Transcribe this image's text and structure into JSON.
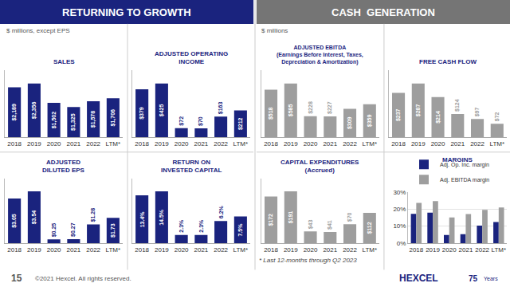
{
  "chart_data": [
    {
      "type": "bar",
      "title": "SALES",
      "categories": [
        "2018",
        "2019",
        "2020",
        "2021",
        "2022",
        "LTM*"
      ],
      "values": [
        2189,
        2356,
        1502,
        1325,
        1578,
        1706
      ],
      "value_labels": [
        "$2,189",
        "$2,356",
        "$1,502",
        "$1,325",
        "$1,578",
        "$1,706"
      ],
      "color": "#1a237e",
      "data_labels": true,
      "ylim": [
        0,
        2945
      ],
      "yticks": [],
      "tick_labels": "x",
      "grid": false
    },
    {
      "type": "bar",
      "title": "ADJUSTED OPERATING\nINCOME",
      "categories": [
        "2018",
        "2019",
        "2020",
        "2021",
        "2022",
        "LTM*"
      ],
      "values": [
        379,
        425,
        72,
        70,
        163,
        212
      ],
      "value_labels": [
        "$379",
        "$425",
        "$72",
        "$70",
        "$163",
        "$212"
      ],
      "color": "#1a237e",
      "data_labels": true,
      "ylim": [
        0,
        531.25
      ],
      "yticks": [],
      "tick_labels": "x",
      "grid": false
    },
    {
      "type": "bar",
      "title": "ADJUSTED\nDILUTED EPS",
      "categories": [
        "2018",
        "2019",
        "2020",
        "2021",
        "2022",
        "LTM*"
      ],
      "values": [
        3.05,
        3.54,
        0.25,
        0.27,
        1.28,
        1.73
      ],
      "value_labels": [
        "$3.05",
        "$3.54",
        "$0.25",
        "$0.27",
        "$1.28",
        "$1.73"
      ],
      "color": "#1a237e",
      "data_labels": true,
      "ylim": [
        0,
        4.425
      ],
      "yticks": [],
      "tick_labels": "x",
      "grid": false
    },
    {
      "type": "bar",
      "title": "RETURN ON\nINVESTED CAPITAL",
      "categories": [
        "2018",
        "2019",
        "2020",
        "2021",
        "2022",
        "LTM*"
      ],
      "values": [
        13.4,
        14.5,
        2.3,
        2.3,
        6.2,
        7.5
      ],
      "value_labels": [
        "13.4%",
        "14.5%",
        "2.3%",
        "2.3%",
        "6.2%",
        "7.5%"
      ],
      "color": "#1a237e",
      "data_labels": true,
      "ylim": [
        0,
        18.125
      ],
      "yticks": [],
      "tick_labels": "x",
      "grid": false
    },
    {
      "type": "bar",
      "title": "ADJUSTED EBITDA\n(Earnings Before Interest, Taxes,\nDepreciation & Amortization)",
      "categories": [
        "2018",
        "2019",
        "2020",
        "2021",
        "2022",
        "LTM*"
      ],
      "values": [
        518,
        585,
        228,
        227,
        309,
        359
      ],
      "value_labels": [
        "$518",
        "$585",
        "$228",
        "$227",
        "$309",
        "$359"
      ],
      "color": "#9e9e9e",
      "data_labels": true,
      "ylim": [
        0,
        731.25
      ],
      "yticks": [],
      "tick_labels": "x",
      "grid": false
    },
    {
      "type": "bar",
      "title": "FREE CASH FLOW",
      "categories": [
        "2018",
        "2019",
        "2020",
        "2021",
        "2022",
        "LTM*"
      ],
      "values": [
        237,
        287,
        214,
        124,
        97,
        72
      ],
      "value_labels": [
        "$237",
        "$287",
        "$214",
        "$124",
        "$97",
        "$72"
      ],
      "color": "#9e9e9e",
      "data_labels": true,
      "ylim": [
        0,
        358.75
      ],
      "yticks": [],
      "tick_labels": "x",
      "grid": false
    },
    {
      "type": "bar",
      "title": "CAPITAL EXPENDITURES\n(Accrued)",
      "categories": [
        "2018",
        "2019",
        "2020",
        "2021",
        "2022",
        "LTM*"
      ],
      "values": [
        172,
        191,
        43,
        41,
        70,
        112
      ],
      "value_labels": [
        "$172",
        "$191",
        "$43",
        "$41",
        "$70",
        "$112"
      ],
      "color": "#9e9e9e",
      "data_labels": true,
      "ylim": [
        0,
        238.75
      ],
      "yticks": [],
      "tick_labels": "x",
      "grid": false
    },
    {
      "type": "bar",
      "title": "MARGINS",
      "categories": [
        "2018",
        "2019",
        "2020",
        "2021",
        "2022",
        "LTM*"
      ],
      "series": [
        {
          "name": "Adj. Op. Inc. margin",
          "color": "#1a237e",
          "values": [
            17.3,
            18.0,
            4.8,
            5.3,
            10.3,
            12.4
          ]
        },
        {
          "name": "Adj. EBITDA margin",
          "color": "#9e9e9e",
          "values": [
            23.7,
            24.8,
            15.2,
            17.1,
            19.6,
            21.0
          ]
        }
      ],
      "ylim": [
        0,
        30
      ],
      "yticks": [
        {
          "value": 0,
          "label": "0%"
        },
        {
          "value": 10,
          "label": "10%"
        },
        {
          "value": 20,
          "label": "20%"
        },
        {
          "value": 30,
          "label": "30%"
        }
      ],
      "grid": true,
      "legend": "upper left"
    }
  ],
  "annotations": [
    {
      "text": "RETURNING TO GROWTH",
      "color": "#1a237e"
    },
    {
      "text": "CASH  GENERATION",
      "color": "#757575"
    },
    {
      "text": "$ millions, except EPS"
    },
    {
      "text": "$ millions"
    },
    {
      "text": "* Last 12-months through Q2 2023"
    },
    {
      "text": "15"
    },
    {
      "text": "©2021 Hexcel. All rights reserved."
    },
    {
      "text": "HEXCEL"
    },
    {
      "text": "75"
    },
    {
      "text": "Years"
    }
  ]
}
